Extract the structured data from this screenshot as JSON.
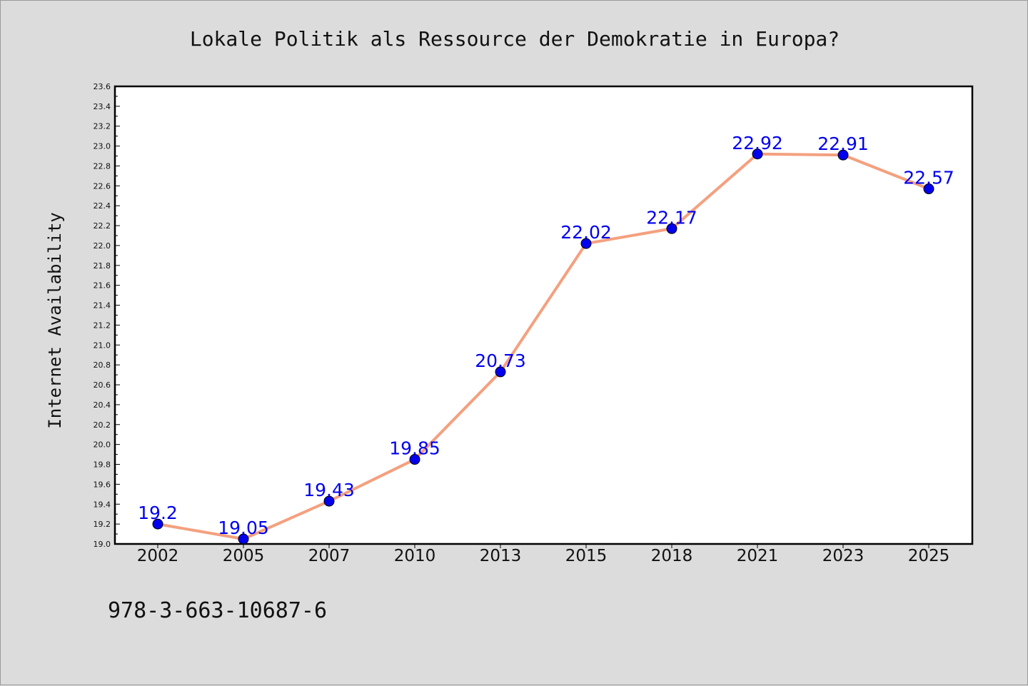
{
  "page": {
    "footer_text": "978-3-663-10687-6"
  },
  "chart_data": {
    "type": "line",
    "title": "Lokale Politik als Ressource der Demokratie in Europa?",
    "xlabel": "",
    "ylabel": "Internet Availability",
    "categories": [
      "2002",
      "2005",
      "2007",
      "2010",
      "2013",
      "2015",
      "2018",
      "2021",
      "2023",
      "2025"
    ],
    "series": [
      {
        "values": [
          19.2,
          19.05,
          19.43,
          19.85,
          20.73,
          22.02,
          22.17,
          22.92,
          22.91,
          22.57
        ],
        "labels": [
          "19.2",
          "19.05",
          "19.43",
          "19.85",
          "20.73",
          "22.02",
          "22.17",
          "22.92",
          "22.91",
          "22.57"
        ],
        "line_color": "#f4a07f",
        "marker_color": "#0000ee",
        "label_color": "#0000ee"
      }
    ],
    "ylim": [
      19.0,
      23.6
    ],
    "yticks": [
      "19.0",
      "19.2",
      "19.4",
      "19.6",
      "19.8",
      "20.0",
      "20.2",
      "20.4",
      "20.6",
      "20.8",
      "21.0",
      "21.2",
      "21.4",
      "21.6",
      "21.8",
      "22.0",
      "22.2",
      "22.4",
      "22.6",
      "22.8",
      "23.0",
      "23.2",
      "23.4",
      "23.6"
    ],
    "grid": false,
    "legend": "none",
    "background": "#ffffff"
  }
}
